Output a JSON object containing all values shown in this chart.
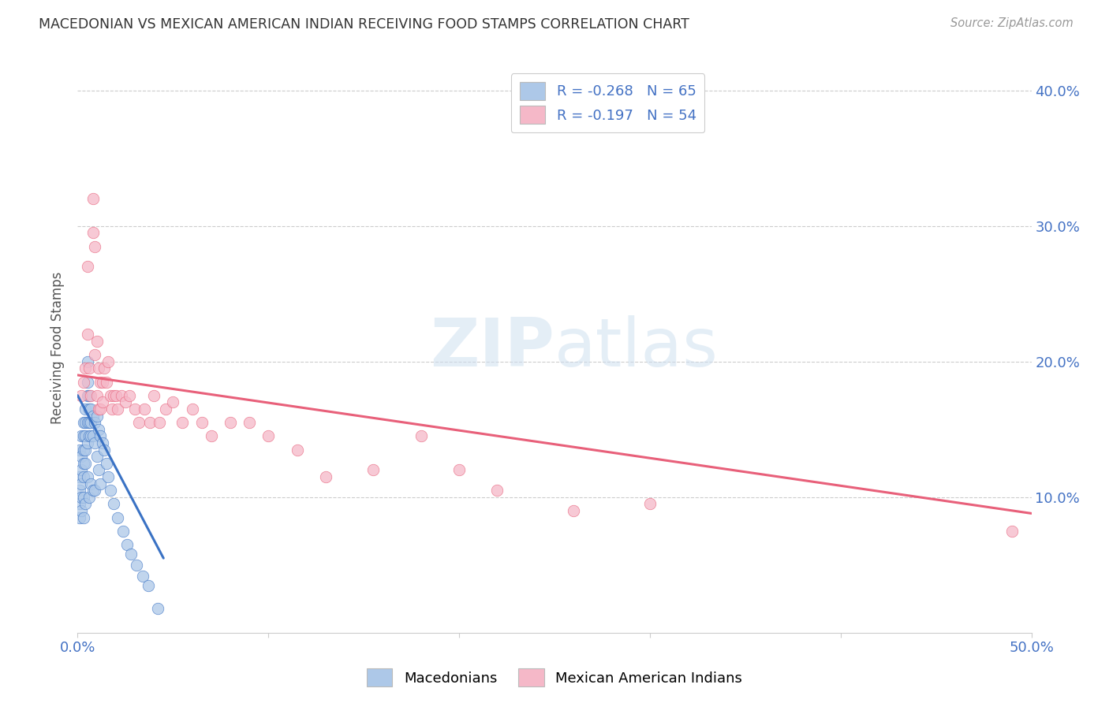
{
  "title": "MACEDONIAN VS MEXICAN AMERICAN INDIAN RECEIVING FOOD STAMPS CORRELATION CHART",
  "source": "Source: ZipAtlas.com",
  "ylabel": "Receiving Food Stamps",
  "xlim": [
    0.0,
    0.5
  ],
  "ylim": [
    0.0,
    0.42
  ],
  "yticks": [
    0.1,
    0.2,
    0.3,
    0.4
  ],
  "ytick_labels": [
    "10.0%",
    "20.0%",
    "30.0%",
    "40.0%"
  ],
  "blue_R": -0.268,
  "blue_N": 65,
  "pink_R": -0.197,
  "pink_N": 54,
  "blue_color": "#adc8e8",
  "pink_color": "#f5b8c8",
  "blue_line_color": "#3a72c4",
  "pink_line_color": "#e8607a",
  "legend_label_blue": "Macedonians",
  "legend_label_pink": "Mexican American Indians",
  "background_color": "#ffffff",
  "blue_scatter_x": [
    0.001,
    0.001,
    0.001,
    0.001,
    0.001,
    0.002,
    0.002,
    0.002,
    0.002,
    0.002,
    0.002,
    0.003,
    0.003,
    0.003,
    0.003,
    0.003,
    0.003,
    0.003,
    0.004,
    0.004,
    0.004,
    0.004,
    0.004,
    0.004,
    0.005,
    0.005,
    0.005,
    0.005,
    0.005,
    0.005,
    0.006,
    0.006,
    0.006,
    0.006,
    0.006,
    0.007,
    0.007,
    0.007,
    0.007,
    0.008,
    0.008,
    0.008,
    0.009,
    0.009,
    0.009,
    0.01,
    0.01,
    0.011,
    0.011,
    0.012,
    0.012,
    0.013,
    0.014,
    0.015,
    0.016,
    0.017,
    0.019,
    0.021,
    0.024,
    0.026,
    0.028,
    0.031,
    0.034,
    0.037,
    0.042
  ],
  "blue_scatter_y": [
    0.135,
    0.115,
    0.105,
    0.095,
    0.085,
    0.145,
    0.13,
    0.12,
    0.11,
    0.1,
    0.09,
    0.155,
    0.145,
    0.135,
    0.125,
    0.115,
    0.1,
    0.085,
    0.165,
    0.155,
    0.145,
    0.135,
    0.125,
    0.095,
    0.2,
    0.185,
    0.175,
    0.155,
    0.14,
    0.115,
    0.175,
    0.165,
    0.155,
    0.145,
    0.1,
    0.165,
    0.155,
    0.145,
    0.11,
    0.16,
    0.145,
    0.105,
    0.155,
    0.14,
    0.105,
    0.16,
    0.13,
    0.15,
    0.12,
    0.145,
    0.11,
    0.14,
    0.135,
    0.125,
    0.115,
    0.105,
    0.095,
    0.085,
    0.075,
    0.065,
    0.058,
    0.05,
    0.042,
    0.035,
    0.018
  ],
  "pink_scatter_x": [
    0.002,
    0.003,
    0.004,
    0.005,
    0.005,
    0.006,
    0.007,
    0.008,
    0.008,
    0.009,
    0.009,
    0.01,
    0.01,
    0.011,
    0.011,
    0.012,
    0.012,
    0.013,
    0.013,
    0.014,
    0.015,
    0.016,
    0.017,
    0.018,
    0.019,
    0.02,
    0.021,
    0.023,
    0.025,
    0.027,
    0.03,
    0.032,
    0.035,
    0.038,
    0.04,
    0.043,
    0.046,
    0.05,
    0.055,
    0.06,
    0.065,
    0.07,
    0.08,
    0.09,
    0.1,
    0.115,
    0.13,
    0.155,
    0.18,
    0.2,
    0.22,
    0.26,
    0.3,
    0.49
  ],
  "pink_scatter_y": [
    0.175,
    0.185,
    0.195,
    0.27,
    0.22,
    0.195,
    0.175,
    0.32,
    0.295,
    0.285,
    0.205,
    0.215,
    0.175,
    0.195,
    0.165,
    0.185,
    0.165,
    0.185,
    0.17,
    0.195,
    0.185,
    0.2,
    0.175,
    0.165,
    0.175,
    0.175,
    0.165,
    0.175,
    0.17,
    0.175,
    0.165,
    0.155,
    0.165,
    0.155,
    0.175,
    0.155,
    0.165,
    0.17,
    0.155,
    0.165,
    0.155,
    0.145,
    0.155,
    0.155,
    0.145,
    0.135,
    0.115,
    0.12,
    0.145,
    0.12,
    0.105,
    0.09,
    0.095,
    0.075
  ],
  "blue_line_x": [
    0.0,
    0.045
  ],
  "blue_line_y": [
    0.175,
    0.055
  ],
  "pink_line_x": [
    0.0,
    0.5
  ],
  "pink_line_y": [
    0.19,
    0.088
  ]
}
